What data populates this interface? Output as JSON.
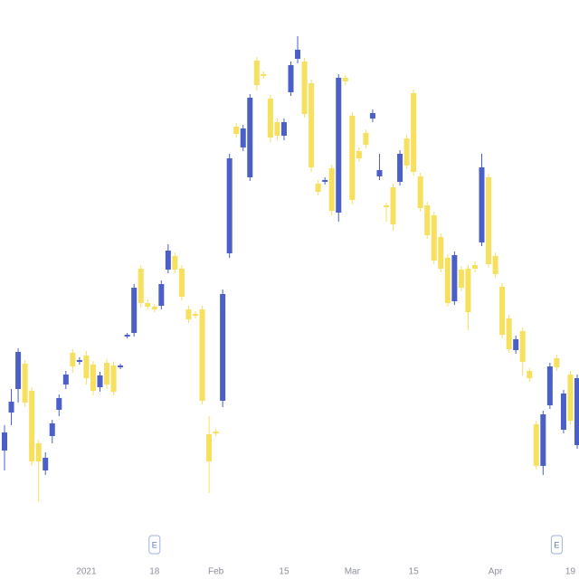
{
  "chart_data": {
    "type": "candlestick",
    "categories": [
      null,
      null,
      null,
      null,
      null,
      null,
      null,
      null,
      null,
      null,
      null,
      null,
      "2021",
      null,
      null,
      null,
      null,
      null,
      null,
      null,
      null,
      null,
      "18",
      null,
      null,
      null,
      null,
      null,
      null,
      null,
      null,
      "Feb",
      null,
      null,
      null,
      null,
      null,
      null,
      null,
      null,
      null,
      "15",
      null,
      null,
      null,
      null,
      null,
      null,
      null,
      null,
      null,
      "Mar",
      null,
      null,
      null,
      null,
      null,
      null,
      null,
      null,
      "15",
      null,
      null,
      null,
      null,
      null,
      null,
      null,
      null,
      null,
      null,
      null,
      "Apr",
      null,
      null,
      null,
      null,
      null,
      null,
      null,
      null,
      null,
      null,
      "19",
      null
    ],
    "earnings": [
      null,
      null,
      null,
      null,
      null,
      null,
      null,
      null,
      null,
      null,
      null,
      null,
      null,
      null,
      null,
      null,
      null,
      null,
      null,
      null,
      null,
      null,
      "E",
      null,
      null,
      null,
      null,
      null,
      null,
      null,
      null,
      null,
      null,
      null,
      null,
      null,
      null,
      null,
      null,
      null,
      null,
      null,
      null,
      null,
      null,
      null,
      null,
      null,
      null,
      null,
      null,
      null,
      null,
      null,
      null,
      null,
      null,
      null,
      null,
      null,
      null,
      null,
      null,
      null,
      null,
      null,
      null,
      null,
      null,
      null,
      null,
      null,
      null,
      null,
      null,
      null,
      null,
      null,
      null,
      null,
      null,
      "E",
      null,
      null,
      null
    ],
    "open": [
      142,
      184,
      210,
      238,
      208,
      150,
      120,
      158,
      187,
      215,
      250,
      240,
      247,
      237,
      212,
      239,
      236,
      234,
      268,
      272,
      343,
      305,
      301,
      302,
      342,
      357,
      343,
      298,
      293,
      298,
      160,
      163,
      197,
      360,
      500,
      477,
      444,
      573,
      558,
      531,
      505,
      490,
      538,
      575,
      572,
      548,
      437,
      439,
      454,
      405,
      554,
      512,
      473,
      493,
      509,
      445,
      413,
      433,
      439,
      487,
      537,
      445,
      413,
      402,
      378,
      355,
      307,
      342,
      343,
      347,
      372,
      444,
      357,
      323,
      288,
      253,
      274,
      230,
      171,
      125,
      192,
      244,
      165,
      226,
      148
    ],
    "high": [
      170,
      210,
      255,
      242,
      212,
      154,
      140,
      176,
      204,
      230,
      254,
      245,
      252,
      241,
      229,
      243,
      240,
      238,
      272,
      326,
      347,
      309,
      304,
      330,
      370,
      361,
      347,
      302,
      296,
      302,
      180,
      166,
      320,
      470,
      504,
      502,
      536,
      577,
      561,
      535,
      509,
      509,
      572,
      600,
      576,
      552,
      441,
      444,
      458,
      558,
      557,
      516,
      477,
      497,
      519,
      470,
      416,
      437,
      474,
      491,
      541,
      449,
      417,
      406,
      382,
      359,
      362,
      346,
      347,
      351,
      470,
      448,
      361,
      327,
      292,
      269,
      278,
      234,
      175,
      186,
      239,
      248,
      209,
      230,
      226
    ],
    "low": [
      120,
      170,
      195,
      190,
      125,
      85,
      115,
      150,
      180,
      210,
      228,
      237,
      215,
      203,
      207,
      210,
      203,
      232,
      266,
      268,
      300,
      298,
      295,
      298,
      338,
      338,
      308,
      283,
      288,
      193,
      95,
      158,
      190,
      355,
      488,
      473,
      440,
      540,
      553,
      483,
      485,
      485,
      534,
      570,
      510,
      450,
      424,
      436,
      402,
      395,
      546,
      414,
      461,
      476,
      505,
      441,
      395,
      385,
      435,
      453,
      446,
      406,
      376,
      348,
      339,
      301,
      303,
      318,
      275,
      339,
      368,
      344,
      333,
      266,
      250,
      249,
      225,
      218,
      121,
      115,
      188,
      230,
      161,
      171,
      144
    ],
    "close": [
      162,
      196,
      251,
      195,
      130,
      130,
      134,
      172,
      200,
      226,
      235,
      242,
      222,
      208,
      225,
      215,
      207,
      236,
      270,
      322,
      305,
      301,
      298,
      326,
      363,
      342,
      312,
      287,
      291,
      197,
      130,
      161,
      315,
      465,
      492,
      498,
      532,
      546,
      556,
      488,
      490,
      505,
      568,
      585,
      514,
      455,
      428,
      441,
      407,
      554,
      550,
      419,
      465,
      480,
      515,
      452,
      411,
      392,
      470,
      457,
      450,
      410,
      380,
      352,
      343,
      305,
      358,
      322,
      295,
      343,
      455,
      348,
      337,
      270,
      254,
      265,
      240,
      222,
      125,
      182,
      235,
      234,
      205,
      175,
      222
    ],
    "up_color": "#4a5fc8",
    "down_color": "#f6e05e",
    "ylim": [
      0,
      640
    ]
  }
}
